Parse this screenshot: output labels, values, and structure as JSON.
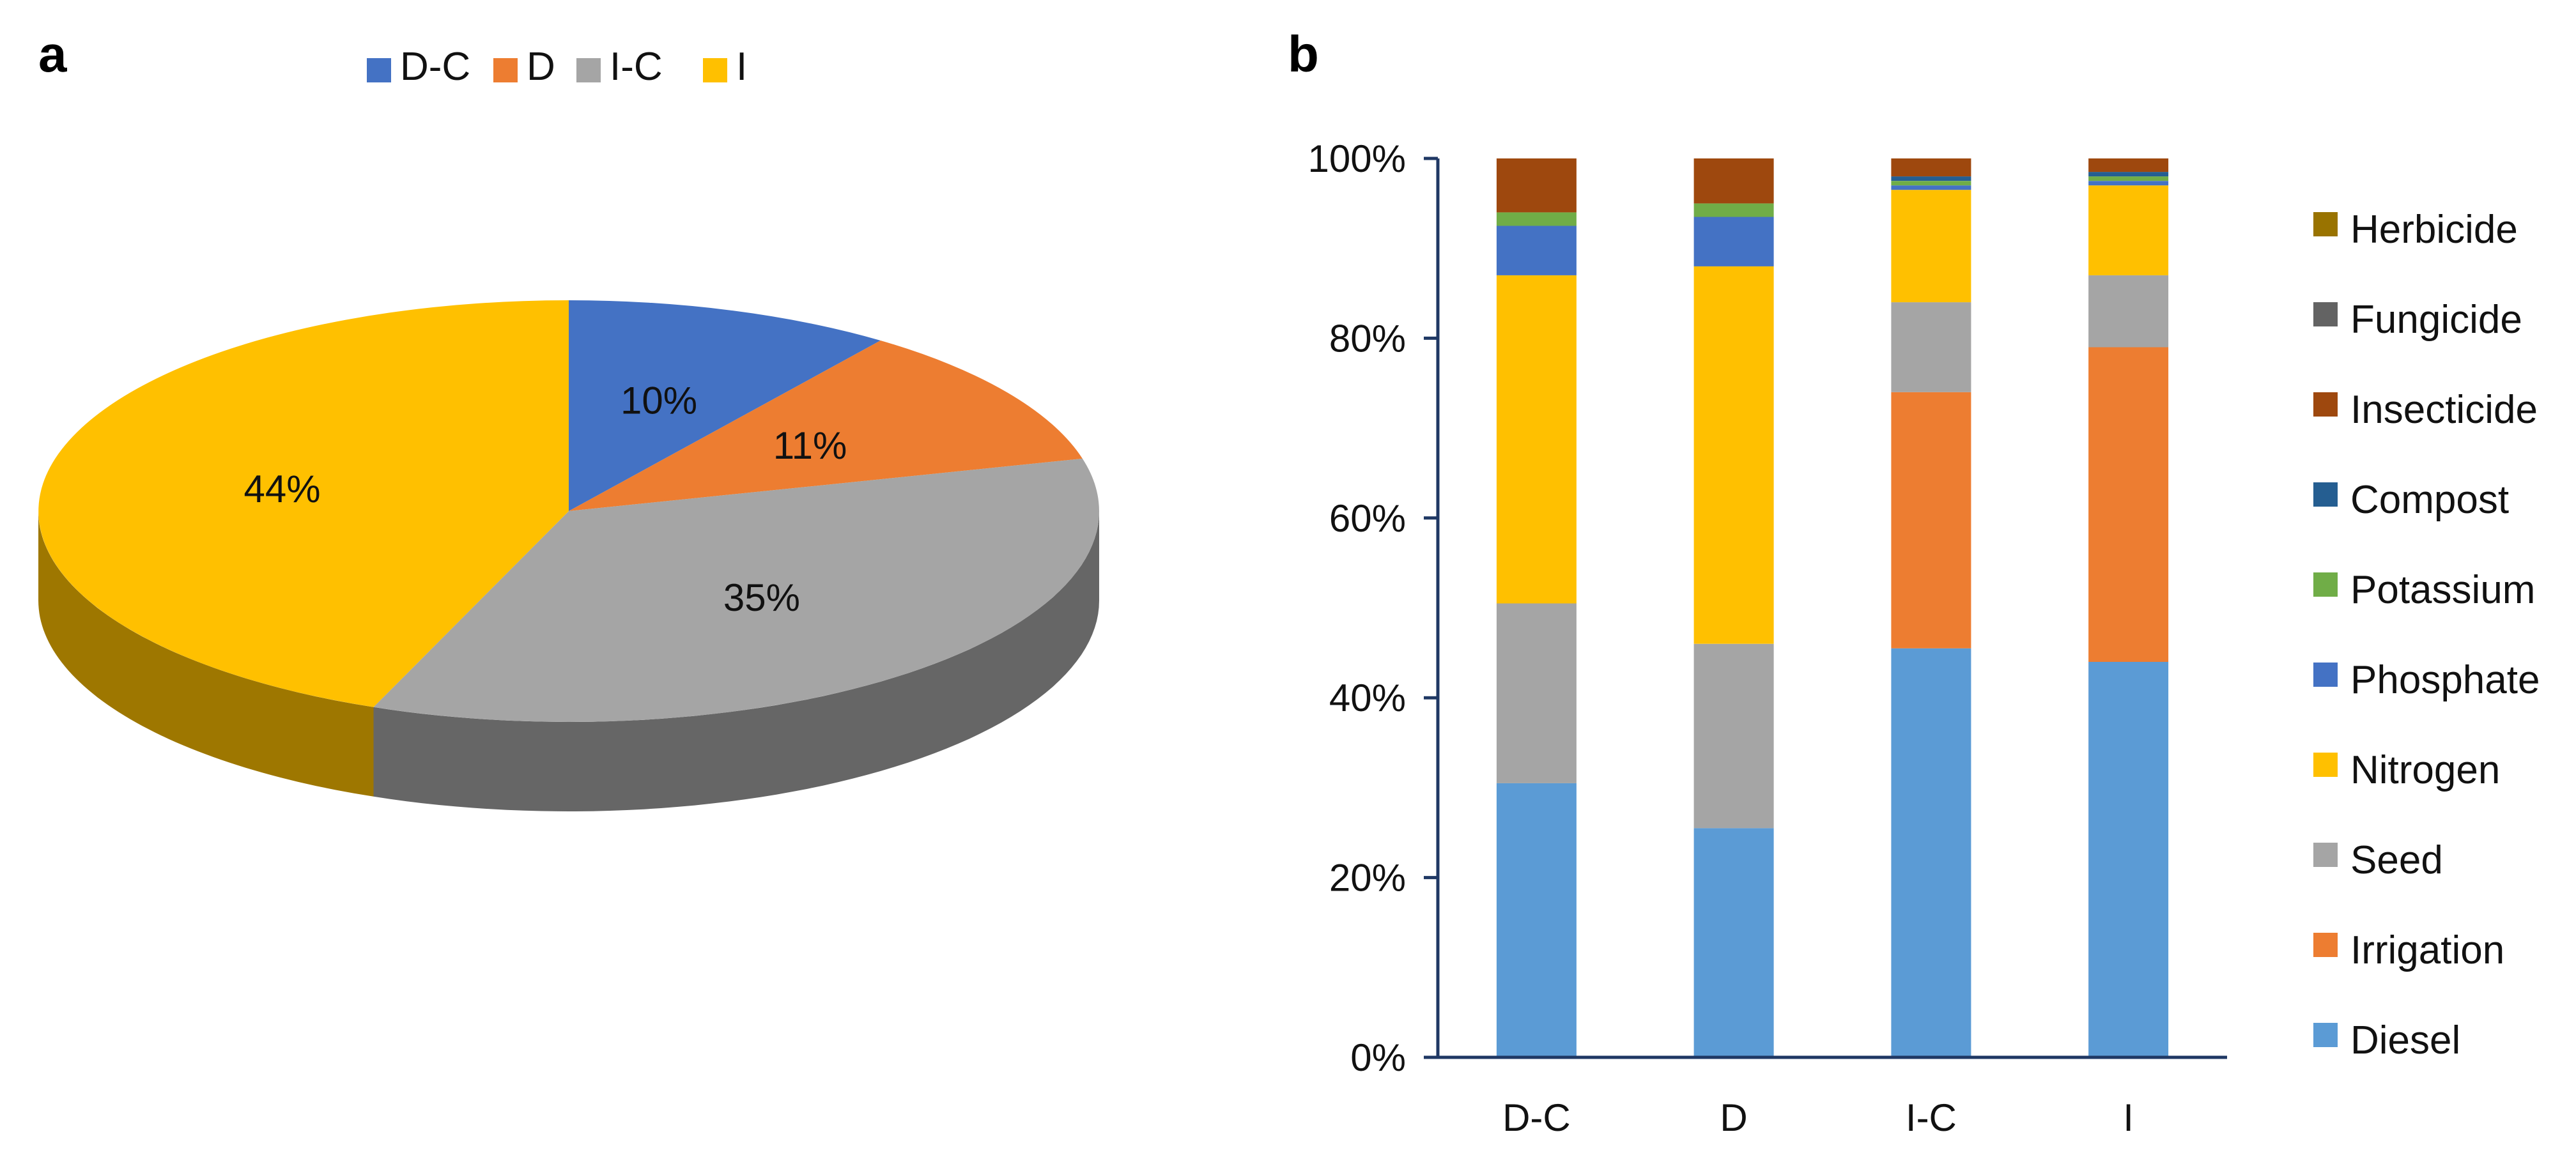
{
  "panels": {
    "a": "a",
    "b": "b"
  },
  "chart_data": [
    {
      "type": "pie",
      "title": "",
      "legend_position": "top",
      "categories": [
        "D-C",
        "D",
        "I-C",
        "I"
      ],
      "values": [
        10,
        11,
        35,
        44
      ],
      "labels": [
        "10%",
        "11%",
        "35%",
        "44%"
      ],
      "colors": [
        "#4472C4",
        "#ED7D31",
        "#A5A5A5",
        "#FFC000"
      ],
      "style": "3d-tilted"
    },
    {
      "type": "bar",
      "stacked": "percent",
      "title": "",
      "xlabel": "",
      "ylabel": "",
      "categories": [
        "D-C",
        "D",
        "I-C",
        "I"
      ],
      "yticks": [
        "0%",
        "20%",
        "40%",
        "60%",
        "80%",
        "100%"
      ],
      "ylim": [
        0,
        100
      ],
      "legend_position": "right",
      "series": [
        {
          "name": "Diesel",
          "color": "#5B9BD5",
          "values": [
            30.5,
            25.5,
            45.5,
            44.0
          ]
        },
        {
          "name": "Irrigation",
          "color": "#ED7D31",
          "values": [
            0.0,
            0.0,
            28.5,
            35.0
          ]
        },
        {
          "name": "Seed",
          "color": "#A5A5A5",
          "values": [
            20.0,
            20.5,
            10.0,
            8.0
          ]
        },
        {
          "name": "Nitrogen",
          "color": "#FFC000",
          "values": [
            36.5,
            42.0,
            12.5,
            10.0
          ]
        },
        {
          "name": "Phosphate",
          "color": "#4472C4",
          "values": [
            5.5,
            5.5,
            0.5,
            0.5
          ]
        },
        {
          "name": "Potassium",
          "color": "#70AD47",
          "values": [
            1.5,
            1.5,
            0.5,
            0.5
          ]
        },
        {
          "name": "Compost",
          "color": "#255E91",
          "values": [
            0.0,
            0.0,
            0.5,
            0.5
          ]
        },
        {
          "name": "Insecticide",
          "color": "#9E480E",
          "values": [
            6.0,
            5.0,
            2.0,
            1.5
          ]
        },
        {
          "name": "Fungicide",
          "color": "#636363",
          "values": [
            0.0,
            0.0,
            0.0,
            0.0
          ]
        },
        {
          "name": "Herbicide",
          "color": "#997300",
          "values": [
            0.0,
            0.0,
            0.0,
            0.0
          ]
        }
      ]
    }
  ]
}
